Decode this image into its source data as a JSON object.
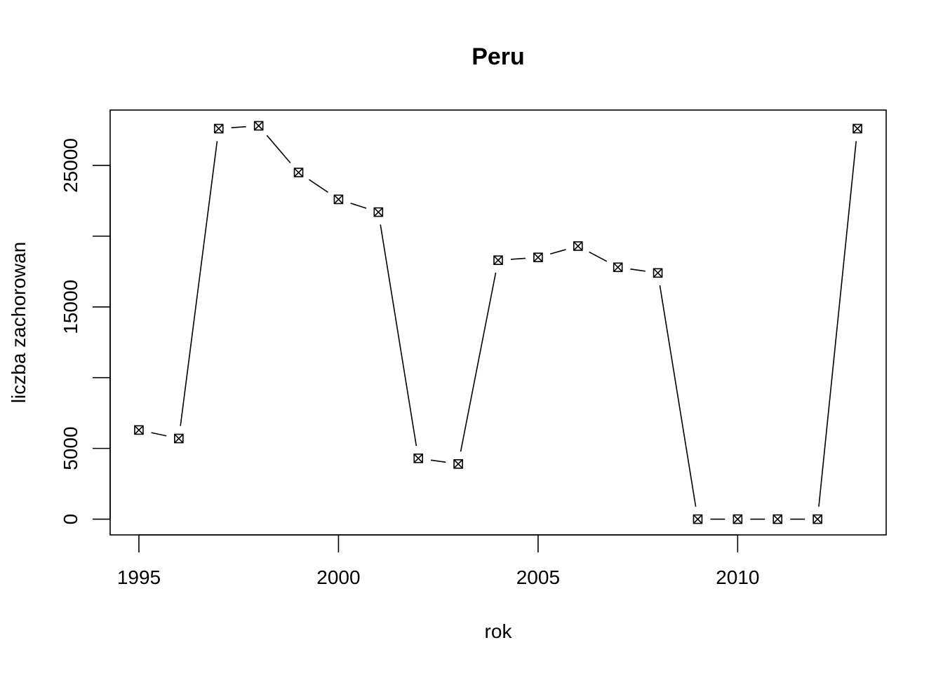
{
  "chart_data": {
    "type": "line",
    "title": "Peru",
    "xlabel": "rok",
    "ylabel": "liczba zachorowan",
    "x": [
      1995,
      1996,
      1997,
      1998,
      1999,
      2000,
      2001,
      2002,
      2003,
      2004,
      2005,
      2006,
      2007,
      2008,
      2009,
      2010,
      2011,
      2012,
      2013
    ],
    "series": [
      {
        "values": [
          6300,
          5700,
          27600,
          27800,
          24500,
          22600,
          21700,
          4300,
          3900,
          18300,
          18500,
          19300,
          17800,
          17400,
          0,
          0,
          0,
          0,
          27600
        ]
      }
    ],
    "x_ticks": [
      1995,
      2000,
      2005,
      2010
    ],
    "y_ticks": [
      0,
      5000,
      10000,
      15000,
      20000,
      25000
    ],
    "y_tick_labels": [
      "0",
      "5000",
      "",
      "15000",
      "",
      "25000"
    ],
    "xlim": [
      1994.28,
      2013.72
    ],
    "ylim": [
      -1112,
      28912
    ],
    "grid": false,
    "marker": "square-with-x",
    "line_style": "both-lines-and-points",
    "colors": {
      "line": "#000000",
      "background": "#ffffff"
    }
  }
}
